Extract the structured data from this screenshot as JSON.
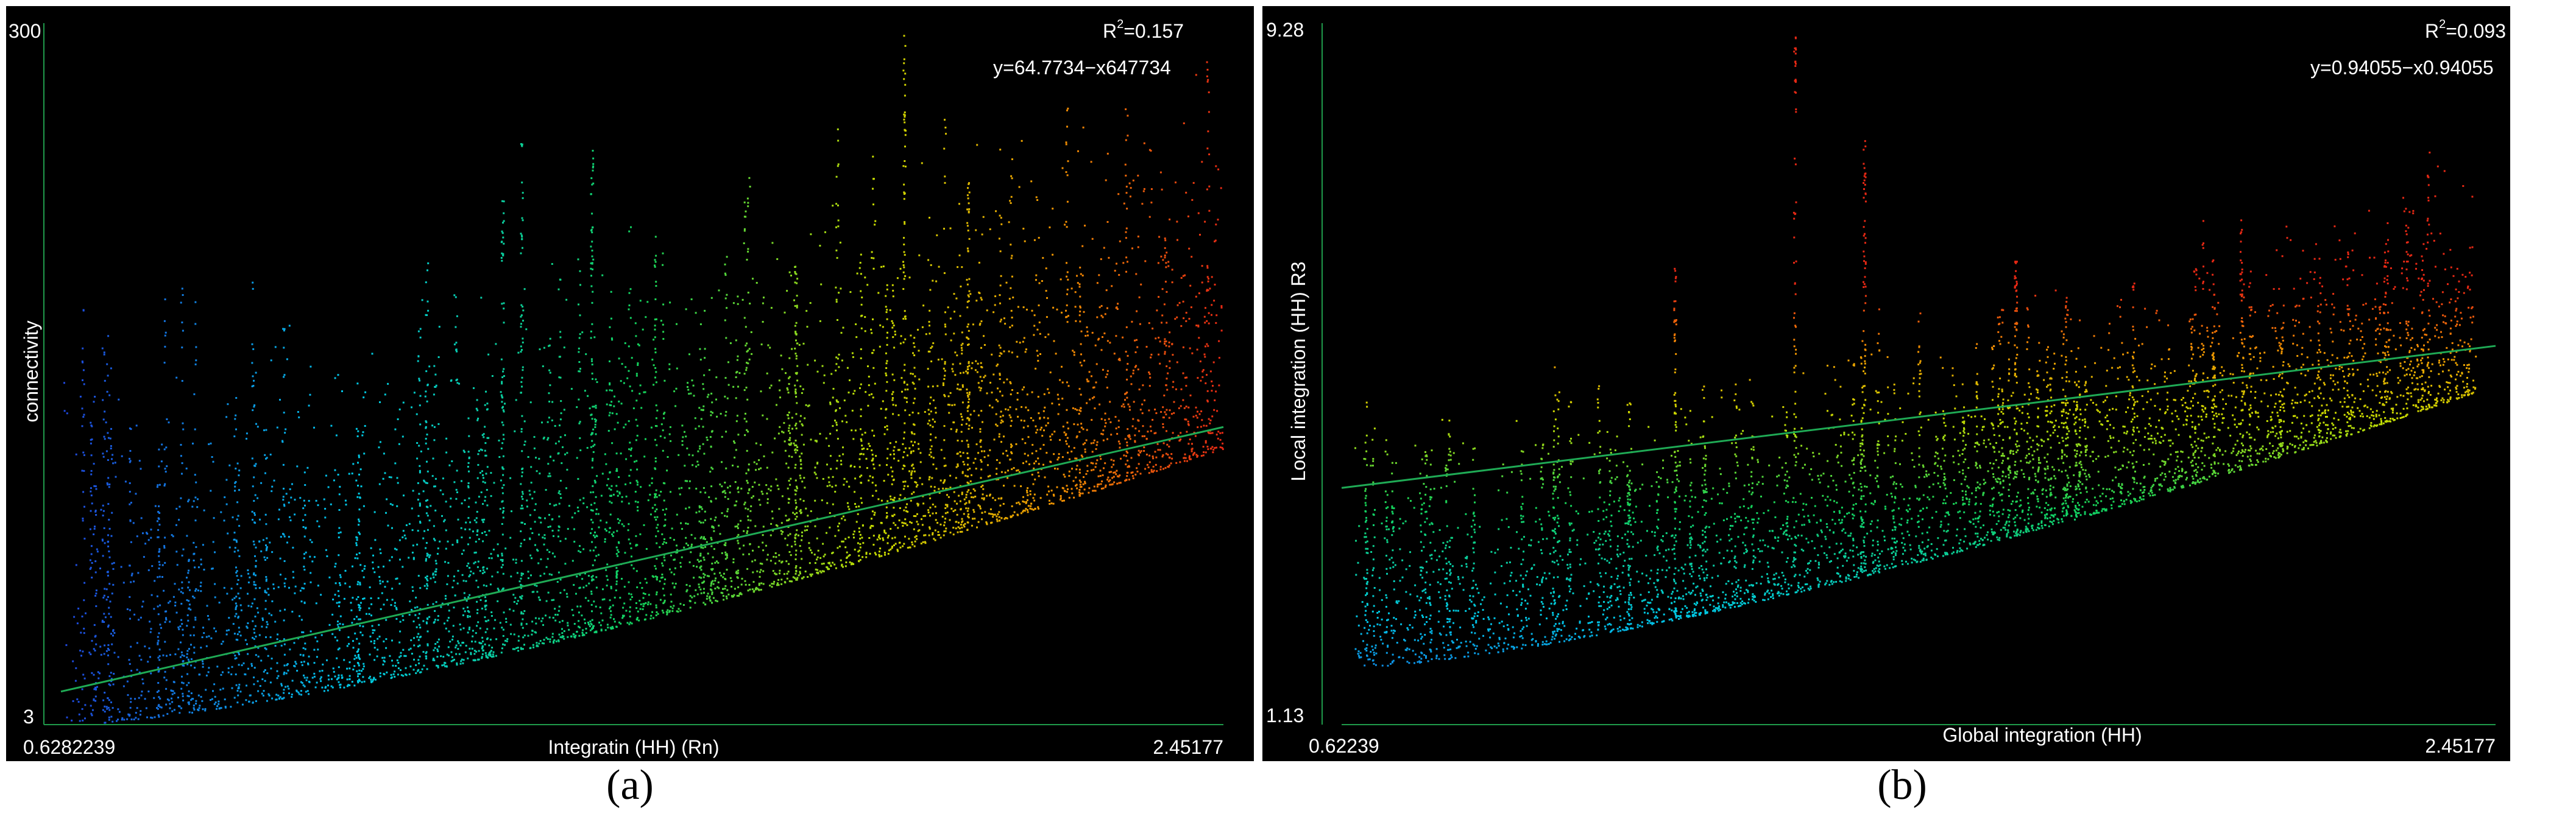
{
  "chart_data": [
    {
      "type": "scatter",
      "panel_label": "(a)",
      "xlabel": "Integratin (HH) (Rn)",
      "ylabel": "connectivity",
      "x_min_label": "0.6282239",
      "x_max_label": "2.45177",
      "y_min_label": "3",
      "y_max_label": "300",
      "xlim": [
        0.6282239,
        2.45177
      ],
      "ylim": [
        3,
        300
      ],
      "r2_prefix": "R",
      "r2_sup": "2",
      "r2_value": "=0.157",
      "equation": "y=64.7734−x647734",
      "regression": {
        "x": [
          0.6282239,
          2.45177
        ],
        "y": [
          17,
          129
        ]
      },
      "colormap": "x-position blue→cyan→green→yellow→orange→red",
      "point_cloud": {
        "x_range": [
          0.63,
          2.45
        ],
        "baseline_y_at_x_min": 3,
        "baseline_y_at_x_max": 120,
        "typical_upper_spread": 110,
        "peaks": [
          {
            "x": 1.35,
            "y": 255
          },
          {
            "x": 1.46,
            "y": 248
          },
          {
            "x": 1.78,
            "y": 200
          },
          {
            "x": 1.95,
            "y": 298
          },
          {
            "x": 2.05,
            "y": 235
          },
          {
            "x": 1.32,
            "y": 235
          }
        ]
      }
    },
    {
      "type": "scatter",
      "panel_label": "(b)",
      "xlabel": "Global integration (HH)",
      "ylabel": "Local integration (HH) R3",
      "x_min_label": "0.62239",
      "x_max_label": "2.45177",
      "y_min_label": "1.13",
      "y_max_label": "9.28",
      "xlim": [
        0.62239,
        2.45177
      ],
      "ylim": [
        1.13,
        9.28
      ],
      "r2_prefix": "R",
      "r2_sup": "2",
      "r2_value": "=0.093",
      "equation": "y=0.94055−x0.94055",
      "regression": {
        "x": [
          0.62239,
          2.45177
        ],
        "y": [
          3.88,
          5.53
        ]
      },
      "colormap": "y-position blue→cyan→green→yellow→orange→red",
      "point_cloud": {
        "x_range": [
          0.64,
          2.42
        ],
        "baseline_y_at_x_min": 1.8,
        "baseline_y_at_x_max": 5.0,
        "typical_upper_spread": 1.9,
        "peaks": [
          {
            "x": 1.34,
            "y": 9.15
          },
          {
            "x": 1.45,
            "y": 8.0
          },
          {
            "x": 1.15,
            "y": 6.5
          },
          {
            "x": 1.69,
            "y": 6.6
          }
        ]
      }
    }
  ]
}
